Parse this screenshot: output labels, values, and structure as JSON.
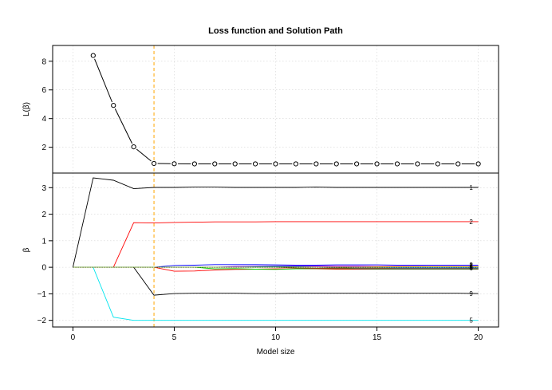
{
  "chart_data": [
    {
      "type": "line",
      "panel": "loss",
      "title": "Loss function and Solution Path",
      "ylabel": "L(β)",
      "xlabel": "",
      "xlim": [
        -1,
        21
      ],
      "ylim": [
        0.2,
        9.1
      ],
      "xticks": [
        0,
        5,
        10,
        15,
        20
      ],
      "yticks": [
        2,
        4,
        6,
        8
      ],
      "grid": true,
      "markers": "open-circle",
      "x": [
        1,
        2,
        3,
        4,
        5,
        6,
        7,
        8,
        9,
        10,
        11,
        12,
        13,
        14,
        15,
        16,
        17,
        18,
        19,
        20
      ],
      "values": [
        8.4,
        4.92,
        2.03,
        0.87,
        0.85,
        0.84,
        0.84,
        0.84,
        0.84,
        0.84,
        0.84,
        0.84,
        0.84,
        0.84,
        0.84,
        0.84,
        0.84,
        0.84,
        0.84,
        0.84
      ],
      "vline": {
        "x": 4,
        "color": "#ffa500"
      },
      "colors": {
        "line": "#000000"
      }
    },
    {
      "type": "line",
      "panel": "path",
      "ylabel": "β",
      "xlabel": "Model size",
      "xlim": [
        -1,
        21
      ],
      "ylim": [
        -2.25,
        3.55
      ],
      "xticks": [
        0,
        5,
        10,
        15,
        20
      ],
      "yticks": [
        -2,
        -1,
        0,
        1,
        2,
        3
      ],
      "grid": true,
      "vline": {
        "x": 4,
        "color": "#ffa500"
      },
      "x": [
        0,
        1,
        2,
        3,
        4,
        5,
        6,
        7,
        8,
        9,
        10,
        11,
        12,
        13,
        14,
        15,
        16,
        17,
        18,
        19,
        20
      ],
      "series": [
        {
          "name": "1",
          "color": "#000000",
          "values": [
            0,
            3.37,
            3.28,
            2.96,
            3.01,
            3.01,
            3.02,
            3.02,
            3.01,
            3.01,
            3.01,
            3.01,
            3.02,
            3.01,
            3.01,
            3.01,
            3.01,
            3.01,
            3.01,
            3.01,
            3.01
          ]
        },
        {
          "name": "2",
          "color": "#ff0000",
          "values": [
            0,
            0,
            0,
            1.68,
            1.67,
            1.69,
            1.7,
            1.71,
            1.71,
            1.71,
            1.72,
            1.72,
            1.72,
            1.72,
            1.72,
            1.72,
            1.72,
            1.72,
            1.72,
            1.72,
            1.72
          ]
        },
        {
          "name": "9",
          "color": "#000000",
          "values": [
            0,
            0,
            0,
            0,
            -1.05,
            -0.99,
            -0.98,
            -0.98,
            -0.98,
            -0.99,
            -0.99,
            -0.98,
            -0.98,
            -0.98,
            -0.98,
            -0.98,
            -0.98,
            -0.98,
            -0.98,
            -0.98,
            -0.99
          ]
        },
        {
          "name": "5",
          "color": "#00e5ee",
          "values": [
            0,
            0,
            -1.88,
            -2.0,
            -2.0,
            -2.0,
            -2.0,
            -2.0,
            -2.0,
            -2.0,
            -2.0,
            -2.0,
            -2.0,
            -2.0,
            -2.0,
            -2.0,
            -2.0,
            -2.0,
            -2.0,
            -2.0,
            -2.0
          ]
        },
        {
          "name": "",
          "color": "#0000ff",
          "values": [
            0,
            0,
            0,
            0,
            0,
            0.07,
            0.08,
            0.1,
            0.1,
            0.1,
            0.09,
            0.08,
            0.08,
            0.09,
            0.09,
            0.09,
            0.08,
            0.08,
            0.08,
            0.08,
            0.08
          ]
        },
        {
          "name": "",
          "color": "#ff0000",
          "values": [
            0,
            0,
            0,
            0,
            0,
            -0.15,
            -0.14,
            -0.1,
            -0.08,
            -0.07,
            -0.06,
            -0.06,
            -0.06,
            -0.07,
            -0.07,
            -0.07,
            -0.07,
            -0.07,
            -0.07,
            -0.07,
            -0.07
          ]
        },
        {
          "name": "",
          "color": "#00cd00",
          "values": [
            0,
            0,
            0,
            0,
            0,
            0,
            0,
            -0.06,
            -0.05,
            -0.07,
            -0.08,
            -0.06,
            -0.05,
            -0.05,
            -0.05,
            -0.05,
            -0.05,
            -0.04,
            -0.04,
            -0.04,
            -0.04
          ]
        },
        {
          "name": "",
          "color": "#a020f0",
          "values": [
            0,
            0,
            0,
            0,
            0,
            0,
            0,
            0,
            0.03,
            0.04,
            0.05,
            0.05,
            0.05,
            0.05,
            0.05,
            0.04,
            0.04,
            0.04,
            0.03,
            0.03,
            0.03
          ]
        },
        {
          "name": "",
          "color": "#008b8b",
          "values": [
            0,
            0,
            0,
            0,
            0,
            0,
            0,
            0,
            0,
            0.02,
            0.03,
            0.02,
            0.02,
            0.01,
            0.01,
            0.01,
            0.01,
            0.01,
            0.01,
            0.01,
            0.01
          ]
        },
        {
          "name": "",
          "color": "#8b4513",
          "values": [
            0,
            0,
            0,
            0,
            0,
            0,
            0,
            0,
            0,
            0,
            0,
            -0.03,
            -0.04,
            -0.04,
            -0.04,
            -0.04,
            -0.04,
            -0.04,
            -0.04,
            -0.04,
            -0.04
          ]
        },
        {
          "name": "",
          "color": "#ff69b4",
          "values": [
            0,
            0,
            0,
            0,
            0,
            0,
            0,
            0,
            0,
            0,
            0,
            0,
            0.02,
            0.03,
            0.03,
            0.03,
            0.03,
            0.03,
            0.03,
            0.03,
            0.03
          ]
        },
        {
          "name": "",
          "color": "#696969",
          "values": [
            0,
            0,
            0,
            0,
            0,
            0,
            0,
            0,
            0,
            0,
            0,
            0,
            0,
            -0.02,
            -0.03,
            -0.03,
            -0.03,
            -0.03,
            -0.03,
            -0.03,
            -0.03
          ]
        },
        {
          "name": "",
          "color": "#556b2f",
          "values": [
            0,
            0,
            0,
            0,
            0,
            0,
            0,
            0,
            0,
            0,
            0,
            0,
            0,
            0,
            -0.06,
            -0.07,
            -0.07,
            -0.07,
            -0.07,
            -0.07,
            -0.07
          ]
        },
        {
          "name": "",
          "color": "#ff8c00",
          "values": [
            0,
            0,
            0,
            0,
            0,
            0,
            0,
            0,
            0,
            0,
            0,
            0,
            0,
            0,
            0,
            0.02,
            0.02,
            0.02,
            0.02,
            0.02,
            0.02
          ]
        },
        {
          "name": "",
          "color": "#1e90ff",
          "values": [
            0,
            0,
            0,
            0,
            0,
            0,
            0,
            0,
            0,
            0,
            0,
            0,
            0,
            0,
            0,
            0,
            -0.02,
            -0.02,
            -0.02,
            -0.02,
            -0.02
          ]
        },
        {
          "name": "",
          "color": "#9acd32",
          "values": [
            0,
            0,
            0,
            0,
            0,
            0,
            0,
            0,
            0,
            0,
            0,
            0,
            0,
            0,
            0,
            0,
            0,
            0.01,
            0.01,
            0.01,
            0.01
          ]
        }
      ],
      "end_labels": [
        "1",
        "2",
        "9",
        "5",
        "2",
        "3",
        "1",
        "5",
        "6"
      ]
    }
  ]
}
